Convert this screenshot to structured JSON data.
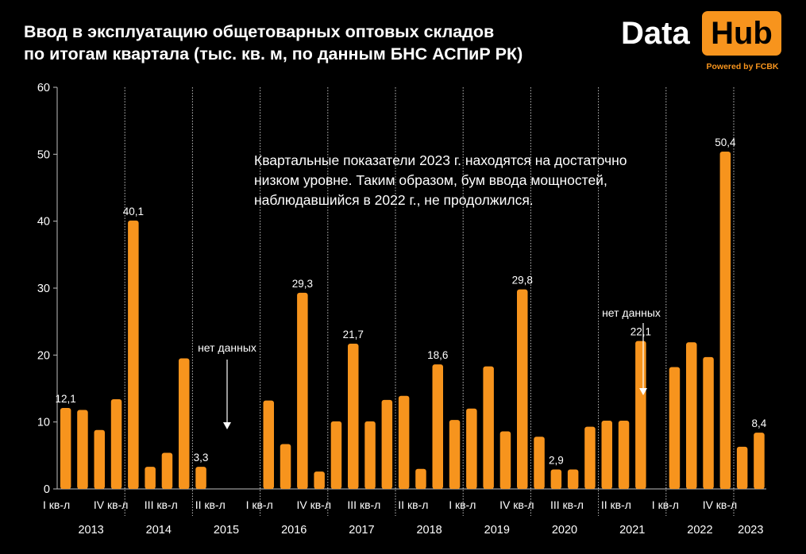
{
  "title": {
    "line1": "Ввод в эксплуатацию общетоварных оптовых складов",
    "line2": "по итогам квартала  (тыс. кв. м, по данным БНС АСПиР РК)"
  },
  "logo": {
    "data_text": "Data",
    "hub_text": "Hub",
    "powered": "Powered by FCBK"
  },
  "annotation": {
    "lines": [
      "Квартальные показатели 2023 г. находятся на достаточно",
      "низком уровне. Таким образом, бум ввода мощностей,",
      "наблюдавшийся в 2022 г., не продолжился."
    ]
  },
  "colors": {
    "bar": "#f7941d",
    "background": "#000000",
    "text": "#ffffff",
    "axis": "#bfbfbf"
  },
  "chart_data": {
    "type": "bar",
    "ylim": [
      0,
      60
    ],
    "yticks": [
      0,
      10,
      20,
      30,
      40,
      50,
      60
    ],
    "grid": false,
    "legend": "none",
    "quarter_labels": [
      "I кв-л",
      "IV кв-л",
      "III кв-л",
      "II кв-л",
      "I кв-л",
      "IV кв-л",
      "III кв-л",
      "II кв-л",
      "I кв-л",
      "IV кв-л",
      "III кв-л",
      "II кв-л",
      "I кв-л",
      "IV кв-л"
    ],
    "years": [
      {
        "year": "2013",
        "values": [
          12.1,
          11.8,
          8.8,
          13.4
        ]
      },
      {
        "year": "2014",
        "values": [
          40.1,
          3.3,
          5.4,
          19.5
        ]
      },
      {
        "year": "2015",
        "values": [
          3.3,
          null,
          null,
          null
        ]
      },
      {
        "year": "2016",
        "values": [
          13.2,
          6.7,
          29.3,
          2.6
        ]
      },
      {
        "year": "2017",
        "values": [
          10.1,
          21.7,
          10.1,
          13.3
        ]
      },
      {
        "year": "2018",
        "values": [
          13.9,
          3.0,
          18.6,
          10.3
        ]
      },
      {
        "year": "2019",
        "values": [
          12.0,
          18.3,
          8.6,
          29.8
        ]
      },
      {
        "year": "2020",
        "values": [
          7.8,
          2.9,
          2.9,
          9.3
        ]
      },
      {
        "year": "2021",
        "values": [
          10.2,
          10.2,
          22.1,
          null
        ]
      },
      {
        "year": "2022",
        "values": [
          18.2,
          21.9,
          19.7,
          50.4
        ]
      },
      {
        "year": "2023",
        "values": [
          6.3,
          8.4
        ]
      }
    ],
    "data_labels": [
      {
        "year": "2013",
        "quarter": 1,
        "text": "12,1"
      },
      {
        "year": "2014",
        "quarter": 1,
        "text": "40,1"
      },
      {
        "year": "2015",
        "quarter": 1,
        "text": "3,3"
      },
      {
        "year": "2016",
        "quarter": 3,
        "text": "29,3"
      },
      {
        "year": "2017",
        "quarter": 2,
        "text": "21,7"
      },
      {
        "year": "2018",
        "quarter": 3,
        "text": "18,6"
      },
      {
        "year": "2019",
        "quarter": 4,
        "text": "29,8"
      },
      {
        "year": "2020",
        "quarter": 2,
        "text": "2,9"
      },
      {
        "year": "2021",
        "quarter": 3,
        "text": "22,1"
      },
      {
        "year": "2022",
        "quarter": 4,
        "text": "50,4"
      },
      {
        "year": "2023",
        "quarter": 2,
        "text": "8,4"
      }
    ],
    "no_data_notes": [
      {
        "text": "нет данных",
        "year": "2015"
      },
      {
        "text": "нет данных",
        "year": "2021"
      }
    ]
  }
}
